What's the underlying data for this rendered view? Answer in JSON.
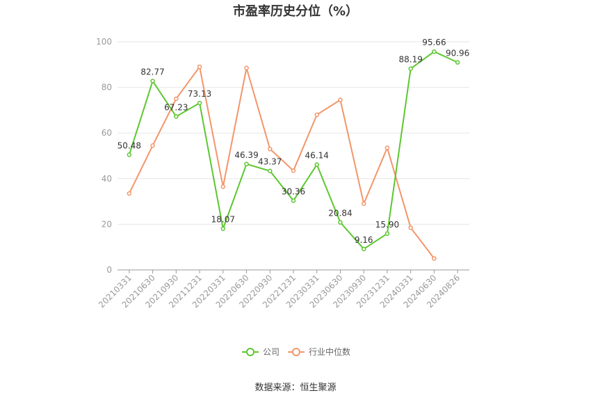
{
  "chart_title": "市盈率历史分位（%）",
  "source": "数据来源：恒生聚源",
  "chart_data": {
    "type": "line",
    "title": "市盈率历史分位（%）",
    "categories": [
      "20210331",
      "20210630",
      "20210930",
      "20211231",
      "20220331",
      "20220630",
      "20220930",
      "20221231",
      "20230331",
      "20230630",
      "20230930",
      "20231231",
      "20240331",
      "20240630",
      "20240826"
    ],
    "ylim": [
      0,
      100
    ],
    "yticks": [
      0,
      20,
      40,
      60,
      80,
      100
    ],
    "grid": true,
    "legend_position": "bottom",
    "series": [
      {
        "name": "公司",
        "color": "#5cc72f",
        "show_labels": true,
        "values": [
          50.48,
          82.77,
          67.23,
          73.13,
          18.07,
          46.39,
          43.37,
          30.36,
          46.14,
          20.84,
          9.16,
          15.9,
          88.19,
          95.66,
          90.96
        ],
        "labels": [
          "50.48",
          "82.77",
          "67.23",
          "73.13",
          "18.07",
          "46.39",
          "43.37",
          "30.36",
          "46.14",
          "20.84",
          "9.16",
          "15.90",
          "88.19",
          "95.66",
          "90.96"
        ]
      },
      {
        "name": "行业中位数",
        "color": "#f39569",
        "show_labels": false,
        "values": [
          33.5,
          54.5,
          75,
          89,
          36.5,
          88.5,
          53,
          43.5,
          68,
          74.5,
          29,
          53.5,
          18.5,
          5,
          null
        ]
      }
    ]
  }
}
